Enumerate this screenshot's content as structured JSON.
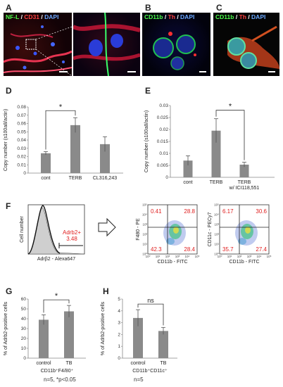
{
  "panels": {
    "A": {
      "label": "A",
      "stain": [
        {
          "text": "NF-L",
          "color": "#4cff4c"
        },
        {
          "text": " / ",
          "color": "#ffffff"
        },
        {
          "text": "CD31",
          "color": "#ff4040"
        },
        {
          "text": " / ",
          "color": "#ffffff"
        },
        {
          "text": "DAPI",
          "color": "#6aa8ff"
        }
      ]
    },
    "B": {
      "label": "B",
      "stain": [
        {
          "text": "CD11b",
          "color": "#4cff4c"
        },
        {
          "text": " / ",
          "color": "#ffffff"
        },
        {
          "text": "Th",
          "color": "#ff4040"
        },
        {
          "text": " / ",
          "color": "#ffffff"
        },
        {
          "text": "DAPI",
          "color": "#6aa8ff"
        }
      ]
    },
    "C": {
      "label": "C",
      "stain": [
        {
          "text": "CD11b",
          "color": "#4cff4c"
        },
        {
          "text": " / ",
          "color": "#ffffff"
        },
        {
          "text": "Th",
          "color": "#ff4040"
        },
        {
          "text": " / ",
          "color": "#ffffff"
        },
        {
          "text": "DAPI",
          "color": "#6aa8ff"
        }
      ]
    },
    "D": {
      "label": "D"
    },
    "E": {
      "label": "E"
    },
    "F": {
      "label": "F"
    },
    "G": {
      "label": "G",
      "footnote": "n=5, *p<0.05"
    },
    "H": {
      "label": "H",
      "footnote": "n=5"
    }
  },
  "chart_data": [
    {
      "id": "D",
      "type": "bar",
      "categories": [
        "cont",
        "TERB",
        "CL316,243"
      ],
      "values": [
        0.024,
        0.058,
        0.035
      ],
      "errors": [
        0.002,
        0.009,
        0.009
      ],
      "ylabel": "Copy number (s100a8/actin)",
      "ylim": [
        0,
        0.08
      ],
      "yticks": [
        "0",
        "0.01",
        "0.02",
        "0.03",
        "0.04",
        "0.05",
        "0.06",
        "0.07",
        "0.08"
      ],
      "significance": {
        "pair": [
          0,
          1
        ],
        "label": "*"
      }
    },
    {
      "id": "E",
      "type": "bar",
      "categories": [
        "cont",
        "TERB",
        "TERB w/ ICI118,551"
      ],
      "values": [
        0.007,
        0.0195,
        0.0053
      ],
      "errors": [
        0.002,
        0.005,
        0.001
      ],
      "ylabel": "Copy number (s100a8/actin)",
      "ylim": [
        0,
        0.03
      ],
      "yticks": [
        "0",
        "0.005",
        "0.01",
        "0.015",
        "0.02",
        "0.025",
        "0.03"
      ],
      "significance": {
        "pair": [
          1,
          2
        ],
        "label": "*"
      }
    },
    {
      "id": "F-histogram",
      "type": "area",
      "xlabel": "Adrβ2 - Alexa647",
      "ylabel": "Cell number",
      "gate": {
        "label": "Adrb2+",
        "value": "3.48"
      }
    },
    {
      "id": "F-scatter-1",
      "type": "scatter",
      "xlabel": "CD11b - FITC",
      "ylabel": "F480 - PE",
      "quadrants": {
        "top_left": "0.41",
        "top_right": "28.8",
        "bottom_left": "42.3",
        "bottom_right": "28.4"
      }
    },
    {
      "id": "F-scatter-2",
      "type": "scatter",
      "xlabel": "CD11b - FITC",
      "ylabel": "CD11c - PECy7",
      "quadrants": {
        "top_left": "6.17",
        "top_right": "30.6",
        "bottom_left": "35.7",
        "bottom_right": "27.4"
      }
    },
    {
      "id": "G",
      "type": "bar",
      "categories": [
        "control",
        "TB"
      ],
      "values": [
        39,
        47.5
      ],
      "errors": [
        5,
        6
      ],
      "ylabel": "% of Adrb2-positive cells",
      "xlabel": "CD11b⁺F4/80⁺",
      "ylim": [
        0,
        60
      ],
      "yticks": [
        "0",
        "10",
        "20",
        "30",
        "40",
        "50",
        "60"
      ],
      "significance": {
        "pair": [
          0,
          1
        ],
        "label": "*"
      }
    },
    {
      "id": "H",
      "type": "bar",
      "categories": [
        "control",
        "TB"
      ],
      "values": [
        3.4,
        2.3
      ],
      "errors": [
        0.7,
        0.3
      ],
      "ylabel": "% of Adrb2-positive cells",
      "xlabel": "CD11b⁺CD11c⁺",
      "ylim": [
        0,
        5
      ],
      "yticks": [
        "0",
        "1",
        "2",
        "3",
        "4",
        "5"
      ],
      "significance": {
        "pair": [
          0,
          1
        ],
        "label": "ns"
      }
    }
  ],
  "fcm_axis_ticks": [
    "10⁰",
    "10¹",
    "10²",
    "10³",
    "10⁴",
    "10⁵"
  ]
}
